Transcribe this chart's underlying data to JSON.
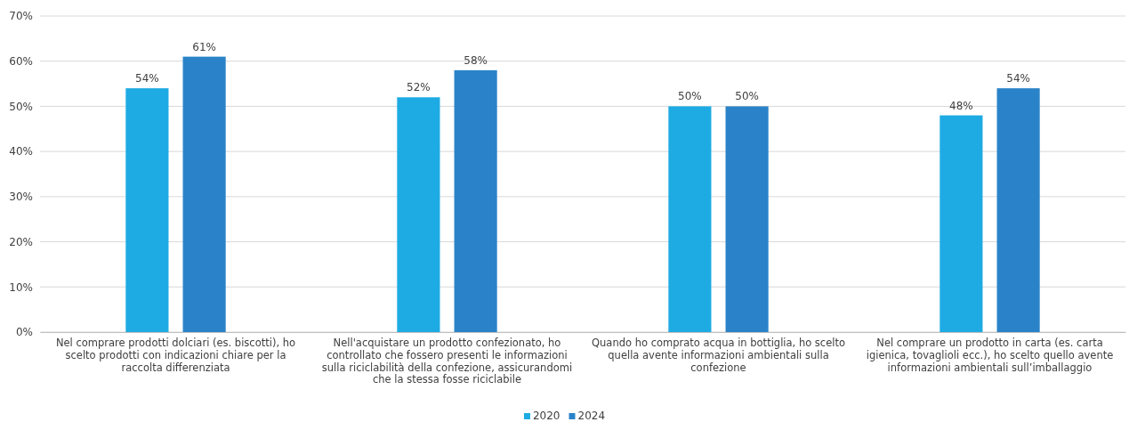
{
  "chart_data": {
    "type": "bar",
    "categories": [
      "Nel comprare prodotti dolciari (es. biscotti), ho scelto prodotti con indicazioni chiare per la raccolta differenziata",
      "Nell'acquistare un prodotto confezionato, ho controllato che fossero presenti le informazioni sulla riciclabilità della confezione, assicurandomi che la stessa fosse riciclabile",
      "Quando ho comprato acqua in bottiglia, ho scelto quella avente informazioni ambientali sulla confezione",
      "Nel comprare un prodotto in carta (es. carta igienica, tovaglioli ecc.), ho scelto quello avente informazioni ambientali sull’imballaggio"
    ],
    "series": [
      {
        "name": "2020",
        "color": "#1eabe3",
        "values": [
          54,
          52,
          50,
          48
        ],
        "value_labels": [
          "54%",
          "52%",
          "50%",
          "48%"
        ]
      },
      {
        "name": "2024",
        "color": "#2a83c8",
        "values": [
          61,
          58,
          50,
          54
        ],
        "value_labels": [
          "61%",
          "58%",
          "50%",
          "54%"
        ]
      }
    ],
    "ylim": [
      0,
      70
    ],
    "yticks": [
      {
        "value": 0,
        "label": "0%"
      },
      {
        "value": 10,
        "label": "10%"
      },
      {
        "value": 20,
        "label": "20%"
      },
      {
        "value": 30,
        "label": "30%"
      },
      {
        "value": 40,
        "label": "40%"
      },
      {
        "value": 50,
        "label": "50%"
      },
      {
        "value": 60,
        "label": "60%"
      },
      {
        "value": 70,
        "label": "70%"
      }
    ],
    "grid": "y",
    "legend": "bottom"
  }
}
